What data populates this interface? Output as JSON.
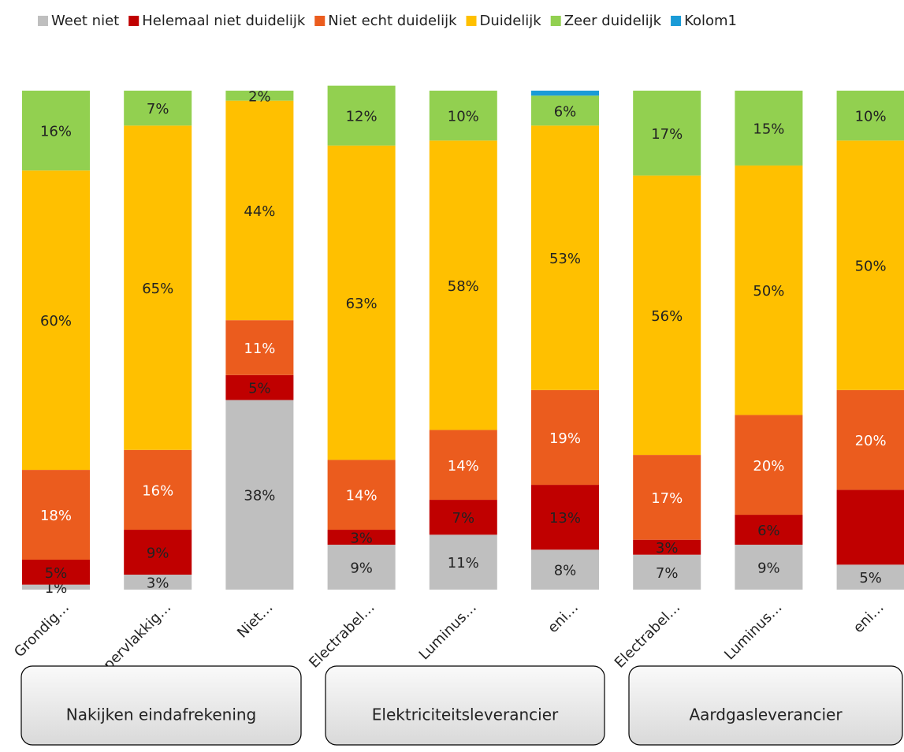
{
  "chart_data": {
    "type": "stacked_bar_100",
    "categories": [
      "Grondig…",
      "Oppervlakkig…",
      "Niet…",
      "Electrabel…",
      "Luminus…",
      "eni…",
      "Electrabel…",
      "Luminus…",
      "eni…"
    ],
    "groups": [
      "Nakijken eindafrekening",
      "Elektriciteitsleverancier",
      "Aardgasleverancier"
    ],
    "ylim": [
      0,
      100
    ],
    "series": [
      {
        "name": "Weet niet",
        "color": "#bfbfbf",
        "label_color": "#222222",
        "values": [
          1,
          3,
          38,
          9,
          11,
          8,
          7,
          9,
          5
        ],
        "value_labels": [
          "1%",
          "3%",
          "38%",
          "9%",
          "11%",
          "8%",
          "7%",
          "9%",
          "5%"
        ]
      },
      {
        "name": "Helemaal niet duidelijk",
        "color": "#c00000",
        "label_color": "#222222",
        "values": [
          5,
          9,
          5,
          3,
          7,
          13,
          3,
          6,
          15
        ],
        "value_labels": [
          "5%",
          "9%",
          "5%",
          "3%",
          "7%",
          "13%",
          "3%",
          "6%",
          null
        ]
      },
      {
        "name": "Niet echt duidelijk",
        "color": "#eb5c1e",
        "label_color": "#ffffff",
        "values": [
          18,
          16,
          11,
          14,
          14,
          19,
          17,
          20,
          20
        ],
        "value_labels": [
          "18%",
          "16%",
          "11%",
          "14%",
          "14%",
          "19%",
          "17%",
          "20%",
          "20%"
        ]
      },
      {
        "name": "Duidelijk",
        "color": "#ffc000",
        "label_color": "#222222",
        "values": [
          60,
          65,
          44,
          63,
          58,
          53,
          56,
          50,
          50
        ],
        "value_labels": [
          "60%",
          "65%",
          "44%",
          "63%",
          "58%",
          "53%",
          "56%",
          "50%",
          "50%"
        ]
      },
      {
        "name": "Zeer duidelijk",
        "color": "#92d050",
        "label_color": "#222222",
        "values": [
          16,
          7,
          2,
          12,
          10,
          6,
          17,
          15,
          10
        ],
        "value_labels": [
          "16%",
          "7%",
          "2%",
          "12%",
          "10%",
          "6%",
          "17%",
          "15%",
          "10%"
        ]
      },
      {
        "name": "Kolom1",
        "color": "#1a9bd7",
        "values": [
          0,
          0,
          0,
          0,
          0,
          1,
          0,
          0,
          0
        ]
      }
    ]
  }
}
